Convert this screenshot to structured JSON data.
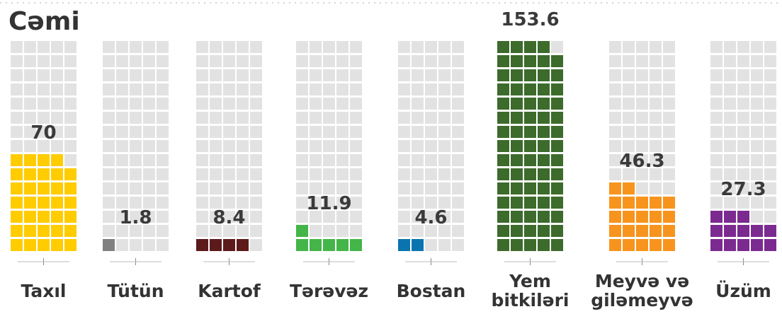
{
  "chart_data": {
    "type": "waffle",
    "title": "Cəmi",
    "categories": [
      "Taxıl",
      "Tütün",
      "Kartof",
      "Tərəvəz",
      "Bostan",
      "Yem bitkiləri",
      "Meyvə və giləmeyvə",
      "Üzüm"
    ],
    "values": [
      70,
      1.8,
      8.4,
      11.9,
      4.6,
      153.6,
      46.3,
      27.3
    ],
    "colors": [
      "#ffcc00",
      "#808080",
      "#5c1a1a",
      "#44b549",
      "#0a74b0",
      "#3d6b2c",
      "#f7941d",
      "#7b2a90"
    ],
    "ylim": [
      0,
      155
    ]
  }
}
